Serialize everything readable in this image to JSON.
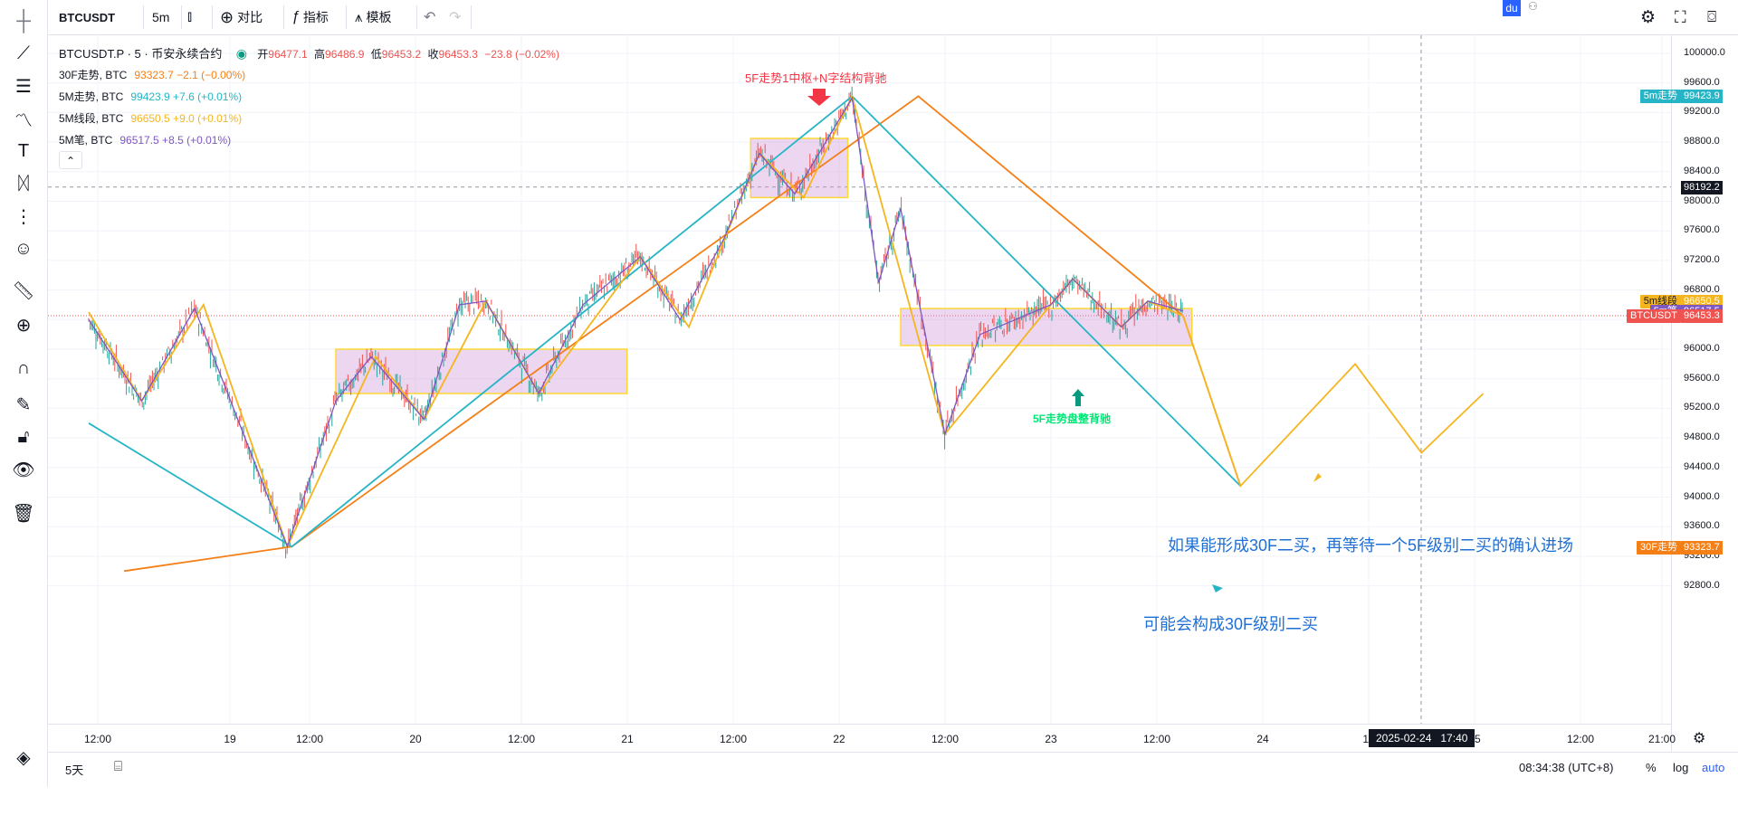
{
  "toolbar": {
    "symbol": "BTCUSDT",
    "interval": "5m",
    "compare_label": "对比",
    "indicators_label": "指标",
    "templates_label": "模板",
    "du_label": "du"
  },
  "legend": {
    "main": {
      "title": "BTCUSDT.P · 5 · 币安永续合约",
      "open_label": "开",
      "open": "96477.1",
      "high_label": "高",
      "high": "96486.9",
      "low_label": "低",
      "low": "96453.2",
      "close_label": "收",
      "close": "96453.3",
      "change": "−23.8 (−0.02%)"
    },
    "indicators": [
      {
        "name": "30F走势, BTC",
        "value": "93323.7 −2.1 (−0.00%)",
        "color": "#f57f17"
      },
      {
        "name": "5M走势, BTC",
        "value": "99423.9 +7.6 (+0.01%)",
        "color": "#26b5c6"
      },
      {
        "name": "5M线段, BTC",
        "value": "96650.5 +9.0 (+0.01%)",
        "color": "#f5b51f"
      },
      {
        "name": "5M笔, BTC",
        "value": "96517.5 +8.5 (+0.01%)",
        "color": "#7e57c2"
      }
    ],
    "collapse_glyph": "⌃"
  },
  "annotations": {
    "top": "5F走势1中枢+N字结构背驰",
    "mid": "5F走势盘整背驰",
    "plan": "如果能形成30F二买，再等待一个5F级别二买的确认进场",
    "maybe": "可能会构成30F级别二买"
  },
  "price_scale": {
    "ticks": [
      "100000.0",
      "99600.0",
      "99200.0",
      "98800.0",
      "98400.0",
      "98000.0",
      "97600.0",
      "97200.0",
      "96800.0",
      "96400.0",
      "96000.0",
      "95600.0",
      "95200.0",
      "94800.0",
      "94400.0",
      "94000.0",
      "93600.0",
      "93200.0",
      "92800.0"
    ],
    "labels": [
      {
        "name": "5m走势",
        "value": "99423.9",
        "color": "#26b5c6",
        "price": 99423.9
      },
      {
        "name": "",
        "value": "98192.2",
        "color": "#131722",
        "price": 98192.2
      },
      {
        "name": "5m线段",
        "value": "96650.5",
        "color": "#f5b51f",
        "price": 96650.5
      },
      {
        "name": "5m笔",
        "value": "96517.5",
        "color": "#7e57c2",
        "price": 96517.5
      },
      {
        "name": "BTCUSDT",
        "value": "96453.3",
        "color": "#ef5350",
        "price": 96453.3
      },
      {
        "name": "30F走势",
        "value": "93323.7",
        "color": "#f57f17",
        "price": 93323.7
      }
    ]
  },
  "time_axis": {
    "ticks": [
      "12:00",
      "19",
      "12:00",
      "20",
      "12:00",
      "21",
      "12:00",
      "22",
      "12:00",
      "23",
      "12:00",
      "24",
      "12",
      "15",
      "12:00",
      "21:00"
    ],
    "crosshair_label": "2025-02-24   17:40"
  },
  "bottom_bar": {
    "range": "5天",
    "clock": "08:34:38 (UTC+8)",
    "percent": "%",
    "log": "log",
    "auto": "auto"
  },
  "chart_data": {
    "type": "line",
    "title": "BTCUSDT.P · 5 · 币安永续合约",
    "ylim": [
      92800,
      100000
    ],
    "x_range": [
      "18 08:00",
      "24 23:00"
    ],
    "grid": true,
    "series": [
      {
        "name": "30F走势",
        "color": "#f57f17",
        "points": [
          [
            "18 12:00",
            93000
          ],
          [
            "19 07:00",
            93330
          ],
          [
            "22 06:00",
            99420
          ],
          [
            "23 12:00",
            96450
          ],
          [
            "23 18:30",
            94150
          ]
        ]
      },
      {
        "name": "5M走势",
        "color": "#26b5c6",
        "points": [
          [
            "18 08:00",
            95000
          ],
          [
            "19 07:00",
            93330
          ],
          [
            "21 22:30",
            99420
          ],
          [
            "23 18:30",
            94150
          ]
        ]
      },
      {
        "name": "5M线段",
        "color": "#f5b51f",
        "points": [
          [
            "18 08:00",
            96500
          ],
          [
            "18 14:00",
            95300
          ],
          [
            "18 21:00",
            96600
          ],
          [
            "19 06:30",
            93330
          ],
          [
            "19 16:30",
            95900
          ],
          [
            "19 22:00",
            95050
          ],
          [
            "20 05:00",
            96650
          ],
          [
            "20 11:00",
            95400
          ],
          [
            "20 22:30",
            97250
          ],
          [
            "21 04:00",
            96300
          ],
          [
            "21 12:00",
            98650
          ],
          [
            "21 17:00",
            98050
          ],
          [
            "21 22:30",
            99420
          ],
          [
            "22 09:00",
            94850
          ],
          [
            "22 21:00",
            96600
          ],
          [
            "22 23:30",
            96950
          ],
          [
            "23 05:00",
            96300
          ],
          [
            "23 08:00",
            96650
          ],
          [
            "23 12:00",
            96450
          ],
          [
            "23 18:30",
            94150
          ],
          [
            "24 07:30",
            95800
          ],
          [
            "24 15:00",
            94600
          ],
          [
            "24 22:00",
            95400
          ]
        ]
      },
      {
        "name": "5M笔",
        "color": "#7e57c2",
        "points": [
          [
            "18 08:00",
            96400
          ],
          [
            "18 14:00",
            95300
          ],
          [
            "18 20:00",
            96550
          ],
          [
            "19 06:30",
            93330
          ],
          [
            "19 12:00",
            95300
          ],
          [
            "19 16:00",
            95900
          ],
          [
            "19 22:00",
            95050
          ],
          [
            "20 02:00",
            96600
          ],
          [
            "20 05:00",
            96650
          ],
          [
            "20 11:00",
            95400
          ],
          [
            "20 16:00",
            96600
          ],
          [
            "20 22:30",
            97250
          ],
          [
            "21 03:00",
            96400
          ],
          [
            "21 08:00",
            97500
          ],
          [
            "21 12:00",
            98650
          ],
          [
            "21 16:00",
            98100
          ],
          [
            "21 19:00",
            98700
          ],
          [
            "21 22:30",
            99400
          ],
          [
            "22 01:30",
            96900
          ],
          [
            "22 04:00",
            97900
          ],
          [
            "22 09:00",
            94850
          ],
          [
            "22 13:00",
            96200
          ],
          [
            "22 17:00",
            96400
          ],
          [
            "22 21:00",
            96600
          ],
          [
            "22 23:30",
            96950
          ],
          [
            "23 05:00",
            96300
          ],
          [
            "23 08:00",
            96650
          ],
          [
            "23 12:00",
            96517
          ]
        ]
      }
    ],
    "zones": [
      {
        "x": [
          "19 12:00",
          "20 21:00"
        ],
        "y": [
          95400,
          96000
        ]
      },
      {
        "x": [
          "21 11:00",
          "21 22:00"
        ],
        "y": [
          98050,
          98850
        ]
      },
      {
        "x": [
          "22 04:00",
          "23 13:00"
        ],
        "y": [
          96050,
          96550
        ]
      }
    ],
    "candles_ohlc_last": {
      "open": 96477.1,
      "high": 96486.9,
      "low": 96453.2,
      "close": 96453.3
    }
  }
}
